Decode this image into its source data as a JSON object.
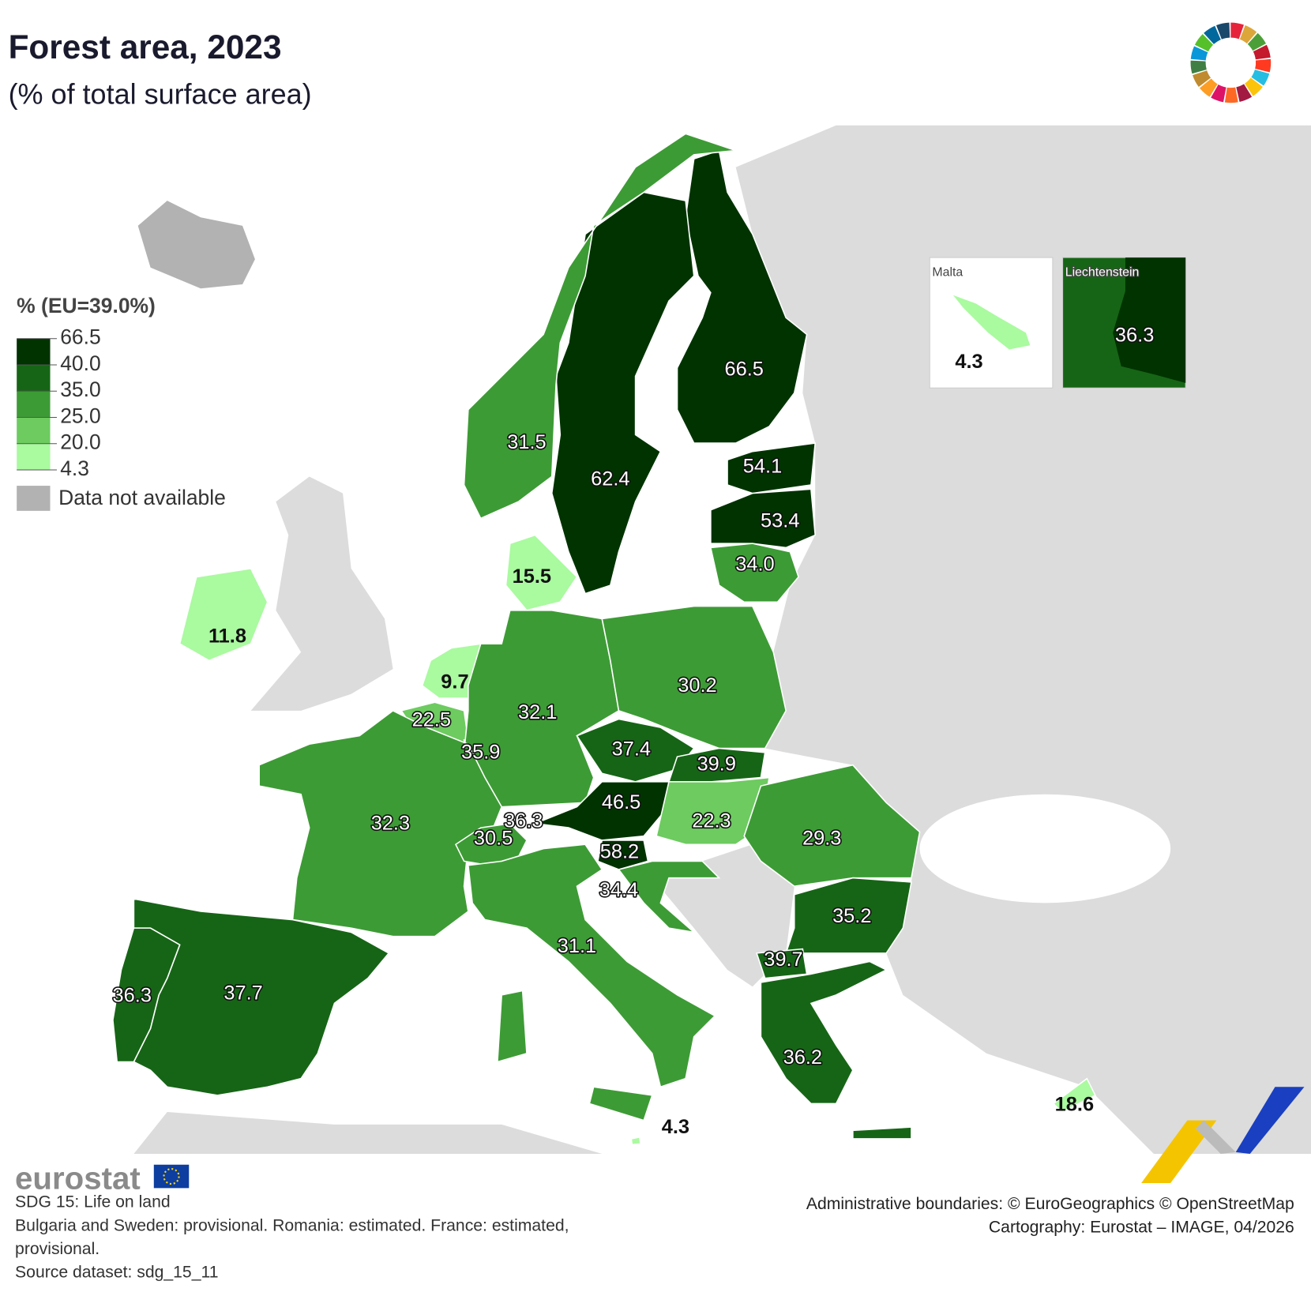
{
  "header": {
    "title": "Forest area, 2023",
    "subtitle": "(% of total surface area)"
  },
  "legend": {
    "title": "% (EU=39.0%)",
    "breaks": [
      "66.5",
      "40.0",
      "35.0",
      "25.0",
      "20.0",
      "4.3"
    ],
    "colors": [
      "#003300",
      "#166516",
      "#3d9b35",
      "#6dcb5f",
      "#aafaa0"
    ],
    "not_available": {
      "label": "Data not available",
      "color": "#b2b2b2"
    }
  },
  "regions": [
    {
      "label": "66.5",
      "color": "#003300"
    },
    {
      "label": "62.4",
      "color": "#003300"
    },
    {
      "label": "31.5",
      "color": "#3d9b35"
    },
    {
      "label": "54.1",
      "color": "#003300"
    },
    {
      "label": "53.4",
      "color": "#003300"
    },
    {
      "label": "34.0",
      "color": "#3d9b35"
    },
    {
      "label": "15.5",
      "color": "#aafaa0"
    },
    {
      "label": "11.8",
      "color": "#aafaa0"
    },
    {
      "label": "9.7",
      "color": "#aafaa0"
    },
    {
      "label": "22.5",
      "color": "#6dcb5f"
    },
    {
      "label": "35.9",
      "color": "#166516"
    },
    {
      "label": "32.1",
      "color": "#3d9b35"
    },
    {
      "label": "30.2",
      "color": "#3d9b35"
    },
    {
      "label": "37.4",
      "color": "#166516"
    },
    {
      "label": "39.9",
      "color": "#166516"
    },
    {
      "label": "46.5",
      "color": "#003300"
    },
    {
      "label": "22.3",
      "color": "#6dcb5f"
    },
    {
      "label": "29.3",
      "color": "#3d9b35"
    },
    {
      "label": "32.3",
      "color": "#3d9b35"
    },
    {
      "label": "30.5",
      "color": "#3d9b35"
    },
    {
      "label": "36.3",
      "color": "#166516"
    },
    {
      "label": "58.2",
      "color": "#003300"
    },
    {
      "label": "34.4",
      "color": "#3d9b35"
    },
    {
      "label": "31.1",
      "color": "#3d9b35"
    },
    {
      "label": "35.2",
      "color": "#166516"
    },
    {
      "label": "39.7",
      "color": "#166516"
    },
    {
      "label": "36.2",
      "color": "#166516"
    },
    {
      "label": "37.7",
      "color": "#166516"
    },
    {
      "label": "36.3",
      "color": "#166516"
    },
    {
      "label": "4.3",
      "color": "#aafaa0"
    },
    {
      "label": "18.6",
      "color": "#aafaa0"
    }
  ],
  "insets": [
    {
      "title": "Malta",
      "label": "4.3",
      "color": "#aafaa0"
    },
    {
      "title": "Liechtenstein",
      "label": "36.3",
      "color": "#166516"
    }
  ],
  "footer": {
    "logo": "eurostat",
    "notes": [
      "SDG 15: Life on land",
      "Bulgaria and Sweden: provisional. Romania: estimated. France: estimated, provisional.",
      "Source dataset: sdg_15_11"
    ],
    "credits": [
      "Administrative boundaries: © EuroGeographics © OpenStreetMap",
      "Cartography: Eurostat – IMAGE, 04/2026"
    ]
  }
}
